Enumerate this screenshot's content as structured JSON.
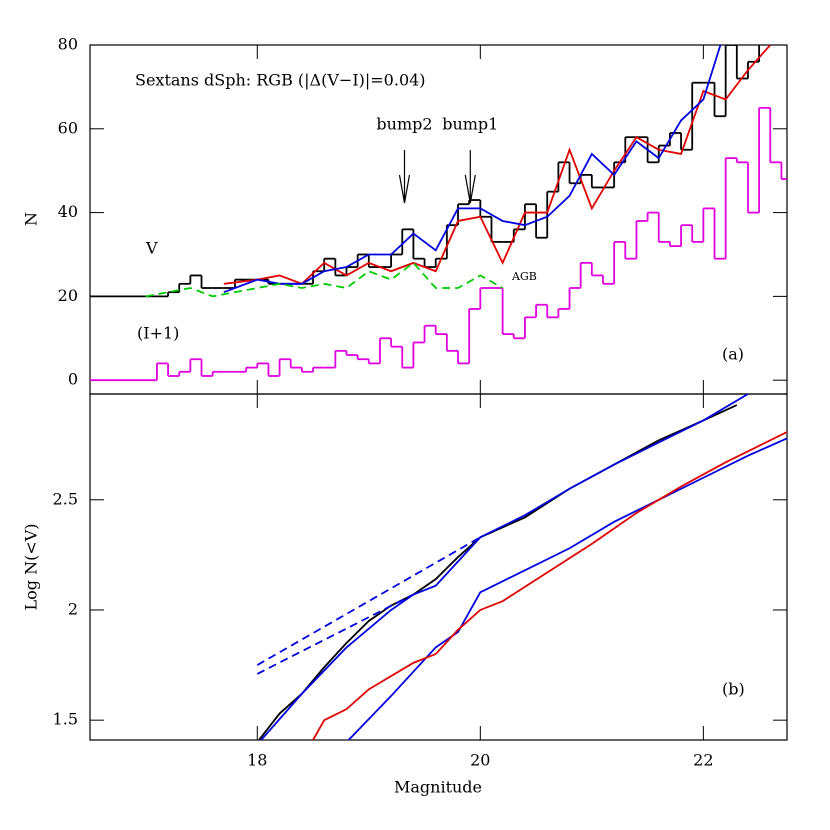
{
  "chart_data": [
    {
      "type": "step",
      "title": "Sextans dSph: RGB (|Δ(V−I)|=0.04)",
      "y_label": "N",
      "panel_label": "(a)",
      "xlim": [
        16.5,
        22.75
      ],
      "xticks": [
        18,
        20,
        22
      ],
      "ylim": [
        -3.3,
        80
      ],
      "yticks": [
        0,
        20,
        40,
        60,
        80
      ],
      "annotations": [
        "V",
        "(I+1)",
        "AGB"
      ],
      "arrows": [
        {
          "label": "bump2",
          "x": 19.32
        },
        {
          "label": "bump1",
          "x": 19.91
        }
      ],
      "series": [
        {
          "color": "#000000",
          "bins": [
            16.5,
            17.2,
            17.3,
            17.4,
            17.5,
            17.6,
            17.7,
            17.8,
            17.9,
            18,
            18.1,
            18.2,
            18.3,
            18.4,
            18.5,
            18.6,
            18.7,
            18.8,
            18.9,
            19,
            19.1,
            19.2,
            19.3,
            19.4,
            19.5,
            19.6,
            19.7,
            19.8,
            19.9,
            20,
            20.1,
            20.2,
            20.3,
            20.4,
            20.5,
            20.6,
            20.7,
            20.8,
            20.9,
            21,
            21.1,
            21.2,
            21.3,
            21.4,
            21.5,
            21.6,
            21.7,
            21.8,
            21.9,
            22,
            22.1,
            22.2,
            22.3,
            22.4,
            22.5,
            22.6
          ],
          "values": [
            20,
            21,
            23,
            25,
            22,
            22,
            22,
            24,
            24,
            24,
            23,
            23,
            23,
            23,
            26,
            29,
            25,
            27,
            30,
            27,
            27,
            30,
            36,
            29,
            27,
            29,
            37,
            42,
            43,
            39,
            33,
            33,
            36,
            42,
            34,
            45,
            52,
            47,
            49,
            46,
            46,
            52,
            58,
            58,
            52,
            56,
            59,
            55,
            71,
            71,
            63,
            80,
            72,
            76,
            84
          ]
        },
        {
          "color": "#e000e0",
          "bins": [
            16.5,
            17.1,
            17.2,
            17.3,
            17.4,
            17.5,
            17.6,
            17.7,
            17.8,
            17.9,
            18,
            18.1,
            18.2,
            18.3,
            18.4,
            18.5,
            18.6,
            18.7,
            18.8,
            18.9,
            19,
            19.1,
            19.2,
            19.3,
            19.4,
            19.5,
            19.6,
            19.7,
            19.8,
            19.9,
            20,
            20.1,
            20.2,
            20.3,
            20.4,
            20.5,
            20.6,
            20.7,
            20.8,
            20.9,
            21,
            21.1,
            21.2,
            21.3,
            21.4,
            21.5,
            21.6,
            21.7,
            21.8,
            21.9,
            22,
            22.1,
            22.2,
            22.3,
            22.4,
            22.5,
            22.6,
            22.7,
            22.8
          ],
          "values": [
            0,
            4,
            1,
            2,
            5,
            1,
            2,
            2,
            2,
            3,
            4,
            1,
            5,
            3,
            2,
            3,
            3,
            7,
            6,
            5,
            4,
            10,
            8,
            3,
            9,
            13,
            11,
            7,
            4,
            17,
            22,
            22,
            11,
            10,
            15,
            18,
            15,
            17,
            22,
            28,
            25,
            23,
            33,
            29,
            38,
            40,
            33,
            32,
            37,
            33,
            41,
            29,
            53,
            52,
            40,
            65,
            52,
            48
          ]
        },
        {
          "color": "#e00000",
          "x": [
            17.7,
            18,
            18.2,
            18.4,
            18.6,
            18.8,
            19,
            19.2,
            19.4,
            19.6,
            19.8,
            20,
            20.2,
            20.4,
            20.6,
            20.8,
            21,
            21.2,
            21.4,
            21.6,
            21.8,
            22,
            22.2,
            22.4,
            22.6
          ],
          "values": [
            23,
            24,
            25,
            23,
            28,
            25,
            28,
            26,
            28,
            26,
            38,
            39,
            28,
            40,
            40,
            55,
            41,
            50,
            58,
            55,
            54,
            69,
            67,
            74,
            80
          ]
        },
        {
          "color": "#0000e0",
          "x": [
            17.7,
            18,
            18.2,
            18.4,
            18.6,
            18.8,
            19,
            19.2,
            19.4,
            19.6,
            19.8,
            20,
            20.2,
            20.4,
            20.6,
            20.8,
            21,
            21.2,
            21.4,
            21.6,
            21.8,
            22,
            22.2
          ],
          "values": [
            21,
            24,
            23,
            23,
            26,
            27,
            30,
            30,
            35,
            31,
            41,
            41,
            38,
            37,
            39,
            44,
            54,
            49,
            57,
            53,
            62,
            67,
            84
          ]
        },
        {
          "color": "#00cc00",
          "dashed": true,
          "x": [
            17,
            17.2,
            17.4,
            17.6,
            17.8,
            18,
            18.2,
            18.4,
            18.6,
            18.8,
            19,
            19.2,
            19.4,
            19.6,
            19.8,
            20,
            20.2
          ],
          "values": [
            20,
            21,
            22,
            20,
            21,
            22,
            23,
            22,
            23,
            22,
            26,
            24,
            28,
            22,
            22,
            25,
            22
          ]
        }
      ]
    },
    {
      "type": "line",
      "y_label": "Log N(<V)",
      "x_label": "Magnitude",
      "panel_label": "(b)",
      "xlim": [
        16.5,
        22.75
      ],
      "xticks": [
        18,
        20,
        22
      ],
      "ylim": [
        1.41,
        2.98
      ],
      "yticks": [
        1.5,
        2,
        2.5
      ],
      "series": [
        {
          "color": "#000000",
          "x": [
            18,
            18.2,
            18.4,
            18.6,
            18.8,
            19,
            19.2,
            19.4,
            19.6,
            19.8,
            20,
            20.4,
            20.8,
            21.2,
            21.6,
            22,
            22.3
          ],
          "values": [
            1.4,
            1.53,
            1.62,
            1.74,
            1.85,
            1.95,
            2.02,
            2.07,
            2.14,
            2.24,
            2.33,
            2.42,
            2.55,
            2.66,
            2.77,
            2.86,
            2.93
          ]
        },
        {
          "color": "#0000e0",
          "x": [
            18,
            18.4,
            18.8,
            19.2,
            19.4,
            19.6,
            19.8,
            20,
            20.4,
            20.8,
            21.2,
            21.6,
            22,
            22.4
          ],
          "values": [
            1.39,
            1.62,
            1.83,
            2,
            2.07,
            2.11,
            2.22,
            2.33,
            2.43,
            2.55,
            2.66,
            2.76,
            2.86,
            2.98
          ]
        },
        {
          "color": "#0000e0",
          "x": [
            18.8,
            19.2,
            19.6,
            19.8,
            20,
            20.4,
            20.8,
            21.2,
            21.6,
            22,
            22.4,
            22.8
          ],
          "values": [
            1.4,
            1.61,
            1.83,
            1.9,
            2.08,
            2.18,
            2.28,
            2.4,
            2.5,
            2.6,
            2.7,
            2.79
          ]
        },
        {
          "color": "#e00000",
          "x": [
            18.5,
            18.6,
            18.8,
            19,
            19.4,
            19.6,
            19.8,
            20,
            20.2,
            20.6,
            21,
            21.4,
            21.8,
            22.2,
            22.8
          ],
          "values": [
            1.41,
            1.5,
            1.55,
            1.64,
            1.76,
            1.8,
            1.91,
            2,
            2.04,
            2.17,
            2.3,
            2.44,
            2.56,
            2.67,
            2.82
          ]
        },
        {
          "color": "#0000e0",
          "dashed": true,
          "x": [
            18,
            20
          ],
          "values": [
            1.75,
            2.33
          ]
        },
        {
          "color": "#0000e0",
          "dashed": true,
          "x": [
            18,
            19.4
          ],
          "values": [
            1.71,
            2.07
          ]
        }
      ]
    }
  ]
}
